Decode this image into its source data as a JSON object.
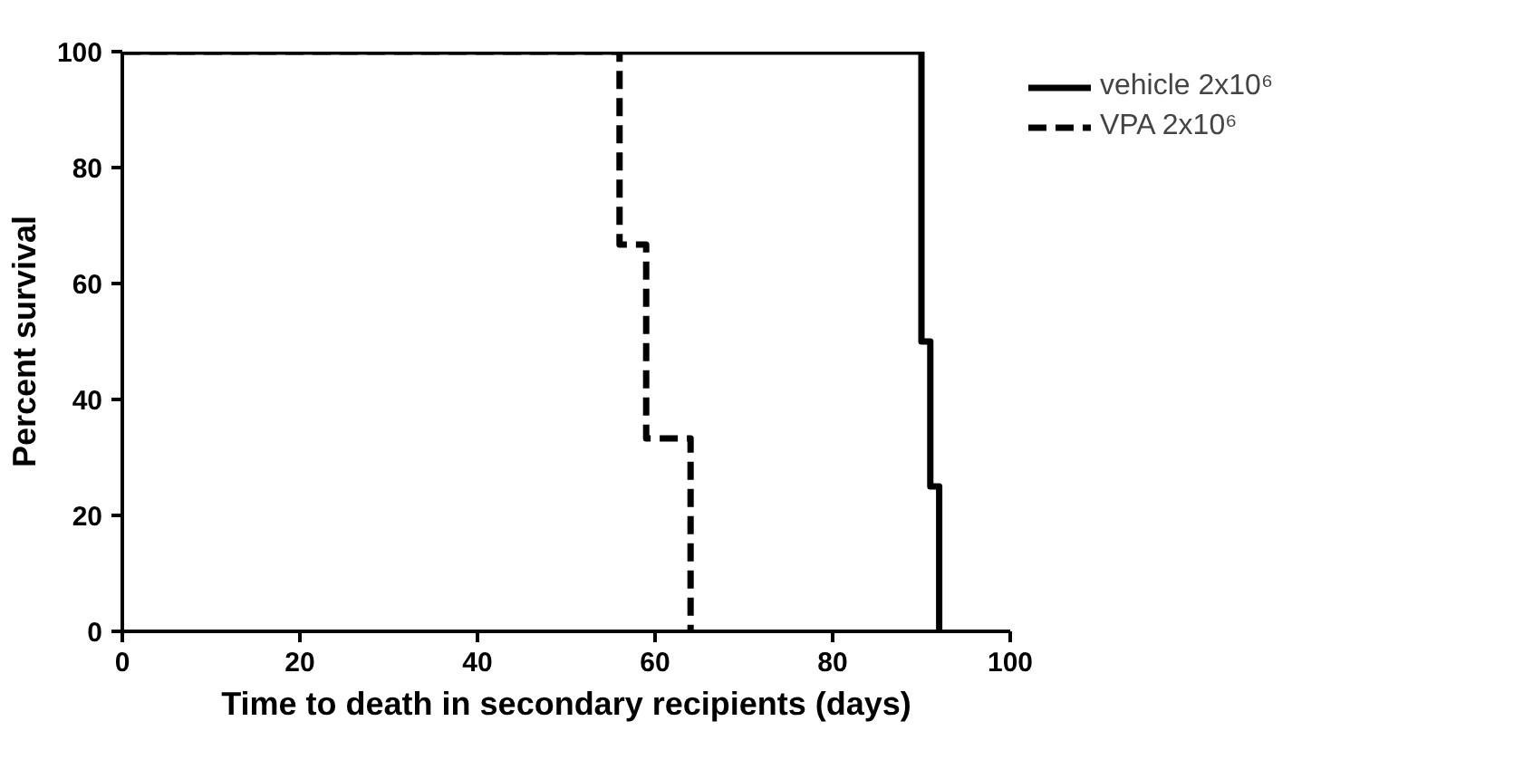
{
  "chart_data": {
    "type": "step",
    "xlabel": "Time to death in secondary recipients (days)",
    "ylabel": "Percent survival",
    "xlim": [
      0,
      100
    ],
    "xticks": [
      0,
      20,
      40,
      60,
      80,
      100
    ],
    "ylim": [
      0,
      100
    ],
    "yticks": [
      0,
      20,
      40,
      60,
      80,
      100
    ],
    "legend": "right",
    "grid": false,
    "series": [
      {
        "name": "vehicle 2x10⁶",
        "color": "#000000",
        "line_style": "solid",
        "x": [
          0,
          90,
          91,
          92
        ],
        "values": [
          100,
          50,
          25,
          0
        ]
      },
      {
        "name": "VPA 2x10⁶",
        "color": "#000000",
        "line_style": "dashed",
        "x": [
          0,
          56,
          59,
          64
        ],
        "values": [
          100,
          66.7,
          33.3,
          0
        ]
      }
    ]
  }
}
